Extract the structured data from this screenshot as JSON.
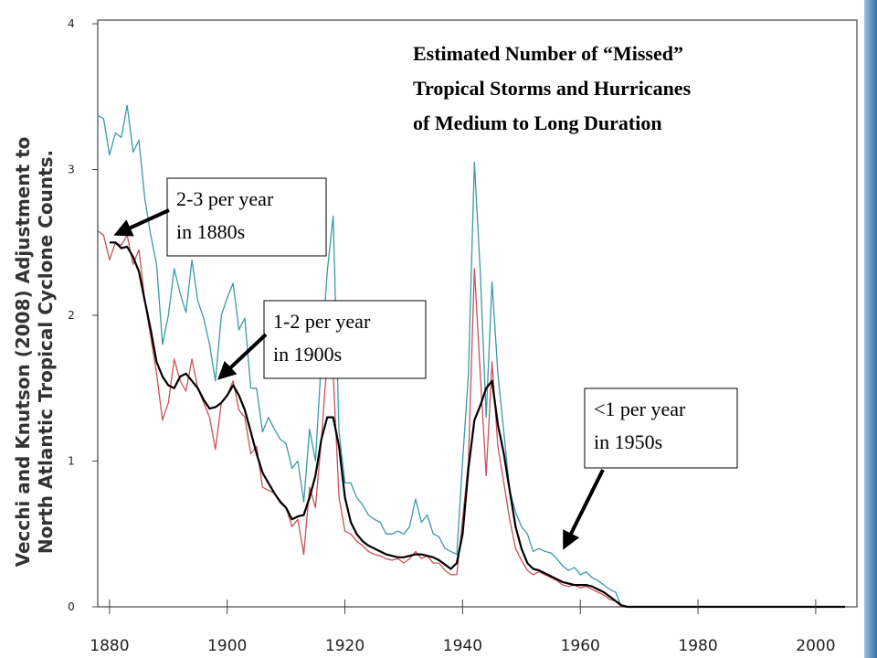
{
  "chart_data": {
    "type": "line",
    "title": [
      "Estimated Number of “Missed”",
      "Tropical Storms and Hurricanes",
      "of Medium to Long Duration"
    ],
    "y_label": [
      "Vecchi and Knutson (2008) Adjustment to",
      "North Atlantic Tropical Cyclone Counts."
    ],
    "annotations": [
      {
        "lines": [
          "2-3 per year",
          "in 1880s"
        ]
      },
      {
        "lines": [
          "1-2 per year",
          "in 1900s"
        ]
      },
      {
        "lines": [
          "<1 per year",
          "in 1950s"
        ]
      }
    ],
    "x": [
      1878,
      1879,
      1880,
      1881,
      1882,
      1883,
      1884,
      1885,
      1886,
      1887,
      1888,
      1889,
      1890,
      1891,
      1892,
      1893,
      1894,
      1895,
      1896,
      1897,
      1898,
      1899,
      1900,
      1901,
      1902,
      1903,
      1904,
      1905,
      1906,
      1907,
      1908,
      1909,
      1910,
      1911,
      1912,
      1913,
      1914,
      1915,
      1916,
      1917,
      1918,
      1919,
      1920,
      1921,
      1922,
      1923,
      1924,
      1925,
      1926,
      1927,
      1928,
      1929,
      1930,
      1931,
      1932,
      1933,
      1934,
      1935,
      1936,
      1937,
      1938,
      1939,
      1940,
      1941,
      1942,
      1943,
      1944,
      1945,
      1946,
      1947,
      1948,
      1949,
      1950,
      1951,
      1952,
      1953,
      1954,
      1955,
      1956,
      1957,
      1958,
      1959,
      1960,
      1961,
      1962,
      1963,
      1964,
      1965,
      1966,
      1967,
      1968,
      2005
    ],
    "series": [
      {
        "color": "#3a9aa8",
        "values": [
          3.37,
          3.35,
          3.1,
          3.25,
          3.22,
          3.44,
          3.12,
          3.2,
          2.8,
          2.55,
          2.35,
          1.8,
          2.0,
          2.32,
          2.15,
          2.02,
          2.38,
          2.1,
          1.98,
          1.8,
          1.55,
          2.0,
          2.12,
          2.22,
          1.9,
          1.98,
          1.5,
          1.5,
          1.2,
          1.3,
          1.22,
          1.15,
          1.12,
          0.95,
          1.0,
          0.72,
          1.22,
          1.0,
          1.7,
          2.3,
          2.68,
          1.2,
          0.85,
          0.85,
          0.75,
          0.7,
          0.63,
          0.6,
          0.58,
          0.5,
          0.5,
          0.52,
          0.5,
          0.55,
          0.74,
          0.58,
          0.63,
          0.5,
          0.48,
          0.4,
          0.38,
          0.36,
          1.0,
          1.6,
          3.05,
          2.3,
          1.3,
          2.23,
          1.6,
          1.2,
          0.8,
          0.65,
          0.55,
          0.5,
          0.38,
          0.4,
          0.38,
          0.37,
          0.33,
          0.28,
          0.25,
          0.27,
          0.22,
          0.24,
          0.2,
          0.18,
          0.15,
          0.12,
          0.1,
          0,
          0,
          0
        ]
      },
      {
        "color": "#c9505a",
        "values": [
          2.58,
          2.55,
          2.38,
          2.5,
          2.48,
          2.55,
          2.35,
          2.45,
          2.1,
          1.85,
          1.6,
          1.28,
          1.4,
          1.7,
          1.55,
          1.48,
          1.7,
          1.5,
          1.4,
          1.3,
          1.08,
          1.4,
          1.45,
          1.55,
          1.35,
          1.3,
          1.05,
          1.1,
          0.82,
          0.8,
          0.78,
          0.73,
          0.68,
          0.55,
          0.6,
          0.36,
          0.82,
          0.68,
          1.15,
          1.7,
          1.6,
          0.75,
          0.52,
          0.5,
          0.45,
          0.42,
          0.38,
          0.36,
          0.35,
          0.33,
          0.32,
          0.33,
          0.3,
          0.33,
          0.38,
          0.33,
          0.35,
          0.3,
          0.3,
          0.25,
          0.22,
          0.22,
          0.6,
          1.0,
          2.32,
          1.6,
          0.9,
          1.68,
          1.1,
          0.85,
          0.6,
          0.4,
          0.32,
          0.25,
          0.22,
          0.24,
          0.22,
          0.2,
          0.18,
          0.15,
          0.14,
          0.15,
          0.13,
          0.14,
          0.12,
          0.1,
          0.08,
          0.05,
          0.04,
          0,
          0,
          0
        ]
      },
      {
        "color": "#000000",
        "values": [
          null,
          null,
          2.5,
          2.5,
          2.46,
          2.47,
          2.4,
          2.3,
          2.1,
          1.9,
          1.68,
          1.58,
          1.52,
          1.5,
          1.58,
          1.6,
          1.55,
          1.5,
          1.42,
          1.36,
          1.37,
          1.4,
          1.45,
          1.52,
          1.45,
          1.35,
          1.2,
          1.05,
          0.92,
          0.85,
          0.78,
          0.72,
          0.68,
          0.6,
          0.62,
          0.63,
          0.75,
          0.9,
          1.15,
          1.3,
          1.3,
          1.1,
          0.75,
          0.58,
          0.5,
          0.45,
          0.42,
          0.4,
          0.38,
          0.36,
          0.35,
          0.34,
          0.34,
          0.35,
          0.36,
          0.36,
          0.35,
          0.34,
          0.32,
          0.29,
          0.26,
          0.3,
          0.5,
          0.95,
          1.28,
          1.38,
          1.5,
          1.55,
          1.25,
          1.05,
          0.8,
          0.55,
          0.4,
          0.3,
          0.26,
          0.25,
          0.23,
          0.21,
          0.19,
          0.17,
          0.16,
          0.15,
          0.15,
          0.15,
          0.14,
          0.12,
          0.1,
          0.07,
          0.04,
          0.01,
          0,
          0
        ]
      }
    ],
    "xlim": [
      1878,
      2007
    ],
    "xticks": [
      1880,
      1900,
      1920,
      1940,
      1960,
      1980,
      2000
    ],
    "ylim": [
      0,
      4
    ],
    "yticks": [
      0,
      1,
      2,
      3,
      4
    ]
  }
}
